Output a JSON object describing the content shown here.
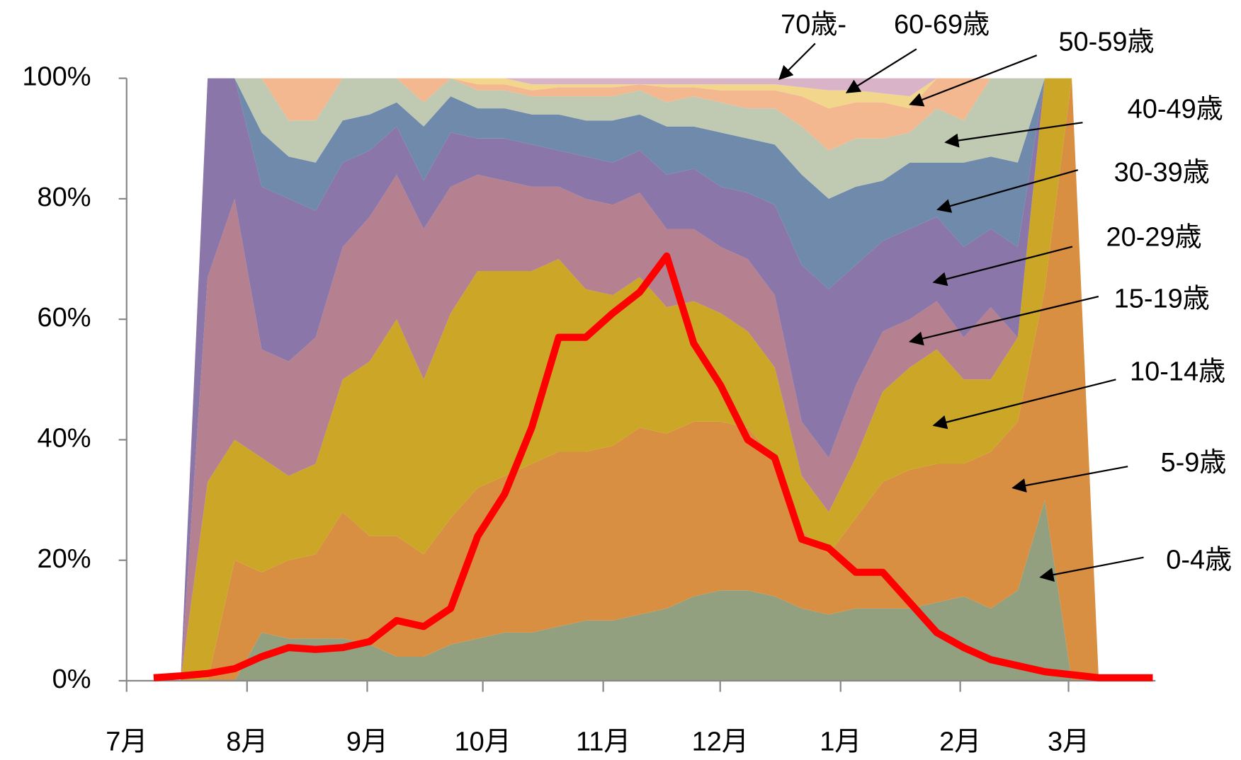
{
  "chart_data": {
    "type": "area",
    "stacked": true,
    "x": [
      0,
      1,
      2,
      3,
      4,
      5,
      6,
      7,
      8,
      9,
      10,
      11,
      12,
      13,
      14,
      15,
      16,
      17,
      18,
      19,
      20,
      21,
      22,
      23,
      24,
      25,
      26,
      27,
      28,
      29,
      30,
      31,
      32,
      33,
      34,
      35,
      36,
      37
    ],
    "xlim": [
      -1.0,
      37.1
    ],
    "xticks": [
      {
        "value": -1.0,
        "label": "7月"
      },
      {
        "value": 3.46,
        "label": "8月"
      },
      {
        "value": 7.91,
        "label": "9月"
      },
      {
        "value": 12.19,
        "label": "10月"
      },
      {
        "value": 16.65,
        "label": "11月"
      },
      {
        "value": 20.98,
        "label": "12月"
      },
      {
        "value": 25.44,
        "label": "1月"
      },
      {
        "value": 29.87,
        "label": "2月"
      },
      {
        "value": 33.88,
        "label": "3月"
      }
    ],
    "ylim": [
      0,
      100
    ],
    "yticks": [
      {
        "value": 0,
        "label": "0%"
      },
      {
        "value": 20,
        "label": "20%"
      },
      {
        "value": 40,
        "label": "40%"
      },
      {
        "value": 60,
        "label": "60%"
      },
      {
        "value": 80,
        "label": "80%"
      },
      {
        "value": 100,
        "label": "100%"
      }
    ],
    "series": [
      {
        "name": "0-4歳",
        "color": "#93a07f",
        "values": [
          0,
          0,
          0,
          0,
          8,
          7,
          7,
          7,
          6,
          4,
          4,
          6,
          7,
          8,
          8,
          9,
          10,
          10,
          11,
          12,
          14,
          15,
          15,
          14,
          12,
          11,
          12,
          12,
          12,
          13,
          14,
          12,
          15,
          30,
          0,
          0,
          0,
          0
        ]
      },
      {
        "name": "5-9歳",
        "color": "#d98f41",
        "values": [
          0,
          0,
          0,
          20,
          10,
          13,
          14,
          21,
          18,
          20,
          17,
          21,
          25,
          26,
          28,
          29,
          28,
          29,
          31,
          29,
          29,
          28,
          27,
          23,
          13,
          10,
          15,
          21,
          23,
          23,
          22,
          26,
          28,
          35,
          100,
          0,
          0,
          0
        ]
      },
      {
        "name": "10-14歳",
        "color": "#cca727",
        "values": [
          0,
          0,
          33,
          20,
          19,
          14,
          15,
          22,
          29,
          36,
          29,
          34,
          36,
          34,
          32,
          32,
          27,
          25,
          25,
          21,
          20,
          18,
          16,
          15,
          9,
          7,
          10,
          15,
          17,
          19,
          14,
          12,
          14,
          35,
          0,
          0,
          0,
          0
        ]
      },
      {
        "name": "15-19歳",
        "color": "#b5808f",
        "values": [
          0,
          0,
          34,
          40,
          18,
          19,
          21,
          22,
          24,
          24,
          25,
          21,
          16,
          15,
          14,
          12,
          15,
          15,
          14,
          13,
          12,
          11,
          12,
          12,
          9,
          9,
          12,
          10,
          8,
          8,
          7,
          12,
          0,
          0,
          0,
          0,
          0,
          0
        ]
      },
      {
        "name": "20-29歳",
        "color": "#8a76a8",
        "values": [
          0,
          0,
          33,
          20,
          27,
          27,
          21,
          14,
          11,
          8,
          8,
          9,
          6,
          7,
          7,
          6,
          7,
          7,
          7,
          9,
          10,
          10,
          11,
          15,
          26,
          28,
          20,
          15,
          15,
          14,
          15,
          13,
          15,
          0,
          0,
          0,
          0,
          0
        ]
      },
      {
        "name": "30-39歳",
        "color": "#6f8aaa",
        "values": [
          0,
          0,
          0,
          0,
          9,
          7,
          8,
          7,
          6,
          4,
          9,
          6,
          5,
          5,
          5,
          6,
          6,
          7,
          6,
          8,
          7,
          9,
          9,
          10,
          15,
          15,
          13,
          10,
          11,
          9,
          14,
          12,
          14,
          0,
          0,
          0,
          0,
          0
        ]
      },
      {
        "name": "40-49歳",
        "color": "#c0cab2",
        "values": [
          0,
          0,
          0,
          0,
          9,
          6,
          7,
          7,
          6,
          4,
          4,
          3,
          3,
          3,
          3,
          3,
          4,
          4,
          4,
          4,
          5,
          5,
          5,
          6,
          8,
          8,
          8,
          7,
          5,
          9,
          7,
          13,
          14,
          0,
          0,
          0,
          0,
          0
        ]
      },
      {
        "name": "50-59歳",
        "color": "#f3b88f",
        "values": [
          0,
          0,
          0,
          0,
          0,
          7,
          7,
          0,
          0,
          0,
          4,
          0,
          1,
          1,
          1,
          1.5,
          1.5,
          1.5,
          1,
          2.5,
          1.5,
          2,
          3,
          3,
          5,
          7,
          6,
          6,
          4,
          5,
          7,
          0,
          0,
          0,
          0,
          0,
          0,
          0
        ]
      },
      {
        "name": "60-69歳",
        "color": "#f2d68c",
        "values": [
          0,
          0,
          0,
          0,
          0,
          0,
          0,
          0,
          0,
          0,
          0,
          0,
          1,
          1,
          1,
          0.5,
          0.5,
          0.5,
          0,
          0.5,
          0.5,
          1,
          1,
          1,
          1.5,
          3,
          2,
          1.5,
          2,
          0,
          0,
          0,
          0,
          0,
          0,
          0,
          0,
          0
        ]
      },
      {
        "name": "70歳-",
        "color": "#d9b4c8",
        "values": [
          0,
          0,
          0,
          0,
          0,
          0,
          0,
          0,
          0,
          0,
          0,
          0,
          0,
          0,
          1,
          1,
          1,
          1,
          1,
          1,
          1,
          1,
          1,
          1,
          1.5,
          2,
          2,
          2.5,
          3,
          0,
          0,
          0,
          0,
          0,
          0,
          0,
          0,
          0
        ]
      }
    ],
    "line": {
      "color": "#ff0000",
      "values": [
        0.5,
        0.8,
        1.2,
        2,
        4,
        5.5,
        5.2,
        5.5,
        6.5,
        10,
        9,
        12,
        24,
        31,
        42,
        57,
        57,
        61,
        64.5,
        70.5,
        56,
        49,
        40,
        37,
        23.5,
        22,
        18,
        18,
        13,
        8,
        5.5,
        3.5,
        2.5,
        1.5,
        1,
        0.5,
        0.5,
        0.5
      ]
    }
  }
}
